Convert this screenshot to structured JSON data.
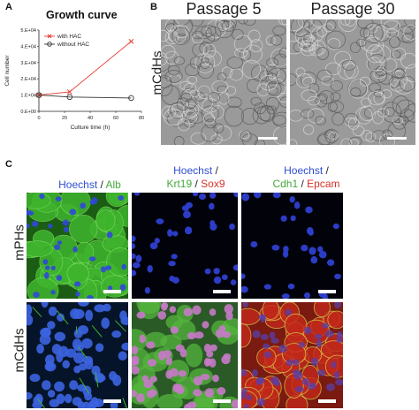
{
  "panels": {
    "a": "A",
    "b": "B",
    "c": "C"
  },
  "chart_data": {
    "type": "line",
    "title": "Growth curve",
    "xlabel": "Culture time (h)",
    "ylabel": "Cell number",
    "x_ticks": [
      "0",
      "20",
      "40",
      "60",
      "80"
    ],
    "y_ticks": [
      "0.E+00",
      "1.E+04",
      "2.E+04",
      "3.E+04",
      "4.E+04",
      "5.E+04"
    ],
    "xlim": [
      0,
      80
    ],
    "ylim": [
      0,
      50000
    ],
    "series": [
      {
        "name": "with HAC",
        "color": "#e8392f",
        "marker": "x",
        "x": [
          0,
          24,
          72
        ],
        "y": [
          10000,
          12000,
          43000
        ]
      },
      {
        "name": "without HAC",
        "color": "#333333",
        "marker": "circle",
        "x": [
          0,
          24,
          72
        ],
        "y": [
          10000,
          8800,
          8200
        ]
      }
    ],
    "legend": "top-left"
  },
  "panel_b": {
    "columns": [
      "Passage 5",
      "Passage 30"
    ],
    "row_label": "mCdHs"
  },
  "panel_c": {
    "rows": [
      "mPHs",
      "mCdHs"
    ],
    "col1": {
      "a": "Hoechst",
      "sep": " / ",
      "b": "Alb"
    },
    "col2": {
      "a": "Hoechst",
      "sep1": " /",
      "b": "Krt19",
      "sep2": " / ",
      "c": "Sox9"
    },
    "col3": {
      "a": "Hoechst",
      "sep1": " /",
      "b": "Cdh1",
      "sep2": " / ",
      "c": "Epcam"
    }
  },
  "colors": {
    "hoechst": "#2f4fd1",
    "green": "#44a83a",
    "red": "#d8322a"
  }
}
